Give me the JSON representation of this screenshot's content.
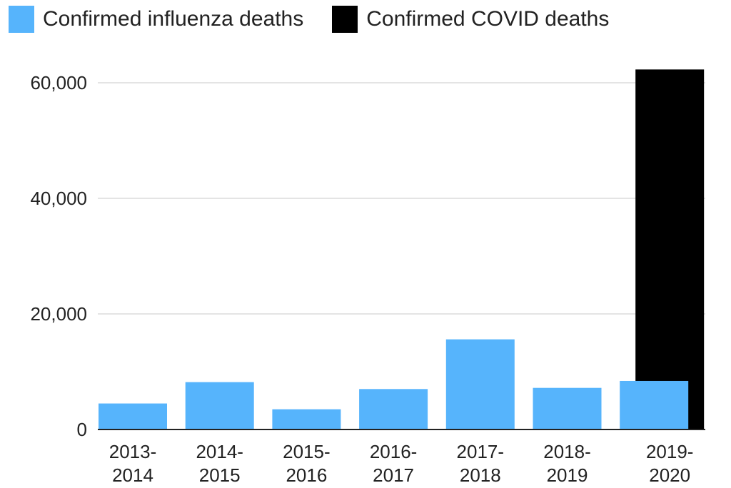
{
  "chart_data": {
    "type": "bar",
    "categories": [
      [
        "2013-",
        "2014"
      ],
      [
        "2014-",
        "2015"
      ],
      [
        "2015-",
        "2016"
      ],
      [
        "2016-",
        "2017"
      ],
      [
        "2017-",
        "2018"
      ],
      [
        "2018-",
        "2019"
      ],
      [
        "2019-",
        "2020"
      ]
    ],
    "series": [
      {
        "name": "Confirmed influenza deaths",
        "color": "#56b4fc",
        "values": [
          4500,
          8200,
          3500,
          7000,
          15600,
          7200,
          8400
        ]
      },
      {
        "name": "Confirmed COVID deaths",
        "color": "#000000",
        "values": [
          null,
          null,
          null,
          null,
          null,
          null,
          62300
        ]
      }
    ],
    "yticks": [
      {
        "value": 0,
        "label": "0"
      },
      {
        "value": 20000,
        "label": "20,000"
      },
      {
        "value": 40000,
        "label": "40,000"
      },
      {
        "value": 60000,
        "label": "60,000"
      }
    ],
    "ylim": [
      0,
      62300
    ],
    "grid": true,
    "legend_position": "top-left",
    "title": "",
    "xlabel": "",
    "ylabel": ""
  }
}
